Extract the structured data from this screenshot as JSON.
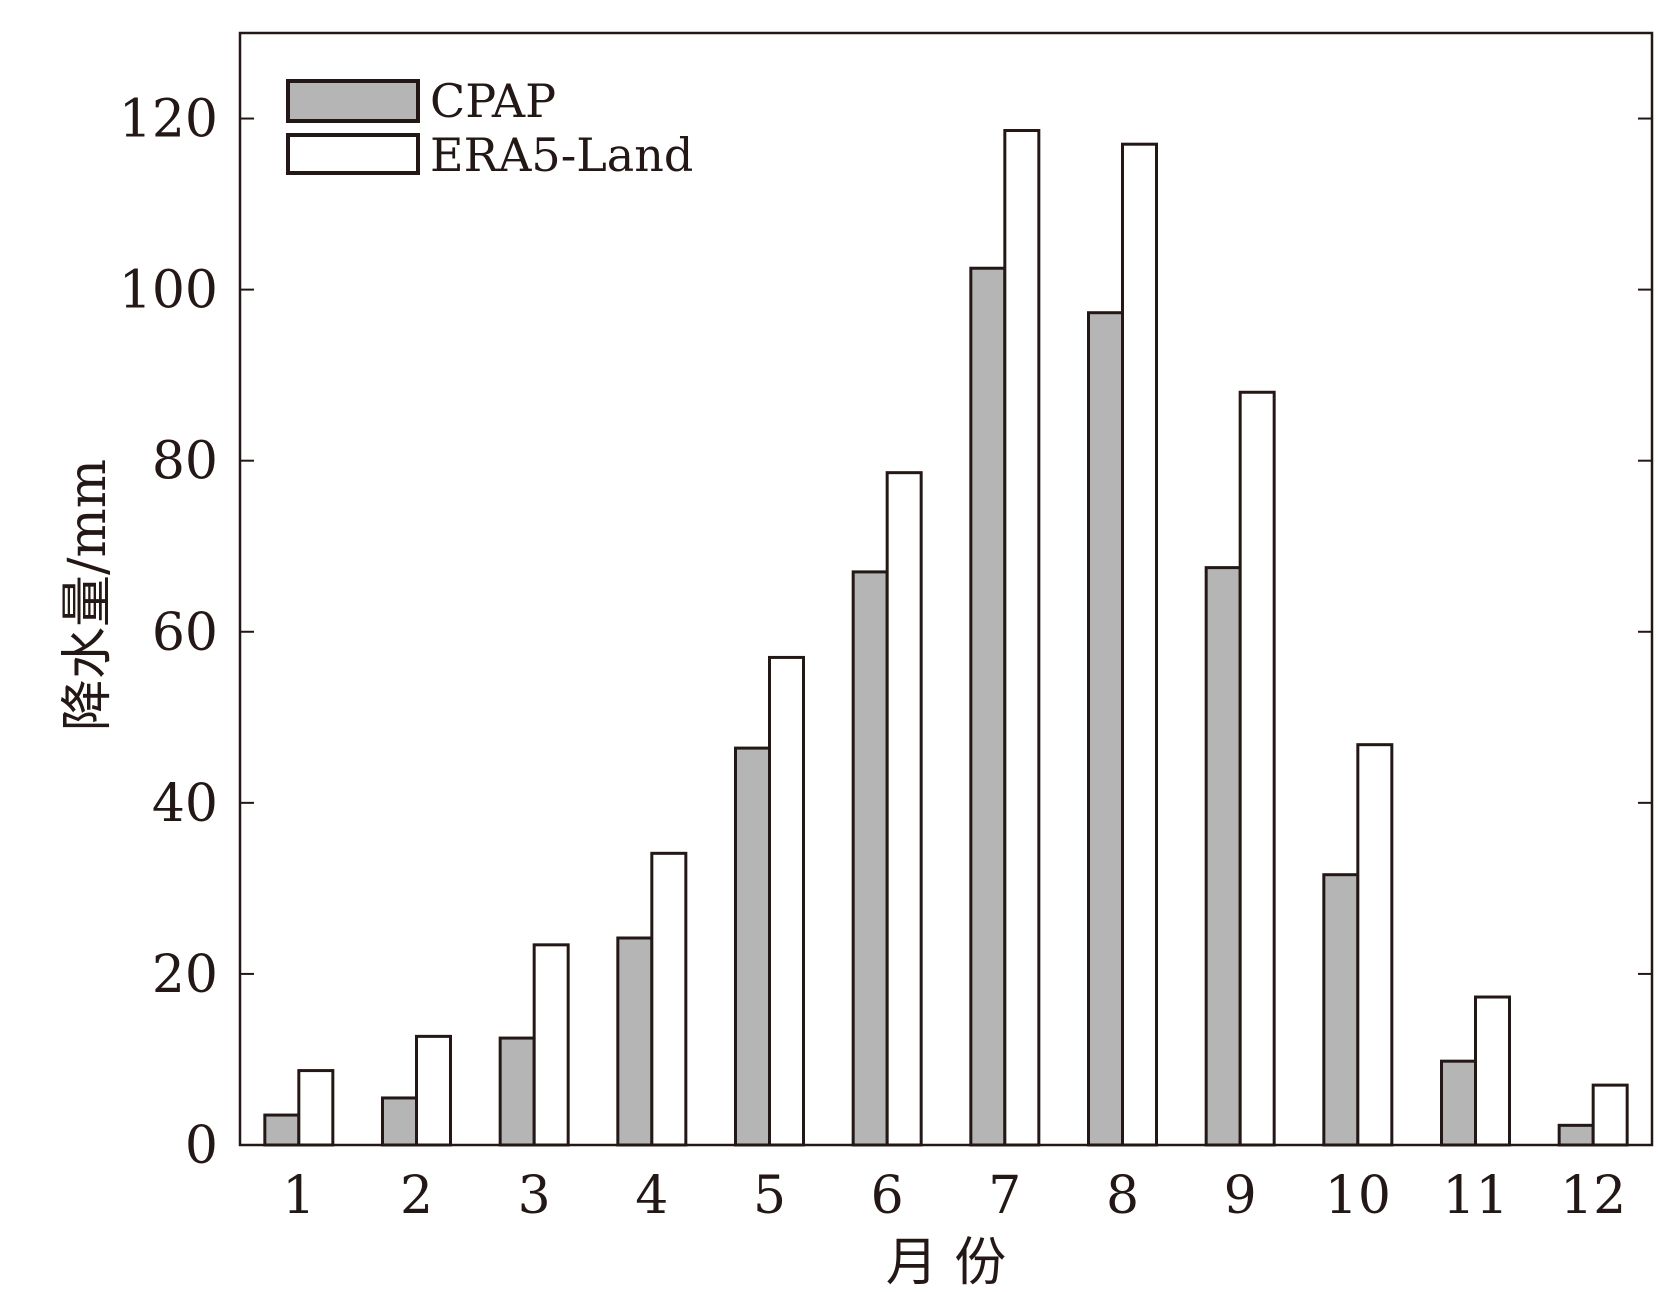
{
  "chart_data": {
    "type": "bar",
    "title": "",
    "xlabel": "月 份",
    "ylabel": "降水量/mm",
    "categories": [
      "1",
      "2",
      "3",
      "4",
      "5",
      "6",
      "7",
      "8",
      "9",
      "10",
      "11",
      "12"
    ],
    "series": [
      {
        "name": "CPAP",
        "color": "#b5b5b6",
        "values": [
          3.5,
          5.5,
          12.5,
          24.2,
          46.4,
          67.0,
          102.5,
          97.3,
          67.5,
          31.6,
          9.8,
          2.3
        ]
      },
      {
        "name": "ERA5-Land",
        "color": "#ffffff",
        "values": [
          8.7,
          12.7,
          23.4,
          34.1,
          57.0,
          78.6,
          118.6,
          117.0,
          88.0,
          46.8,
          17.3,
          7.0
        ]
      }
    ],
    "ylim": [
      0,
      130
    ],
    "yticks": [
      0,
      20,
      40,
      60,
      80,
      100,
      120
    ],
    "grid": false,
    "legend_position": "top-left"
  }
}
